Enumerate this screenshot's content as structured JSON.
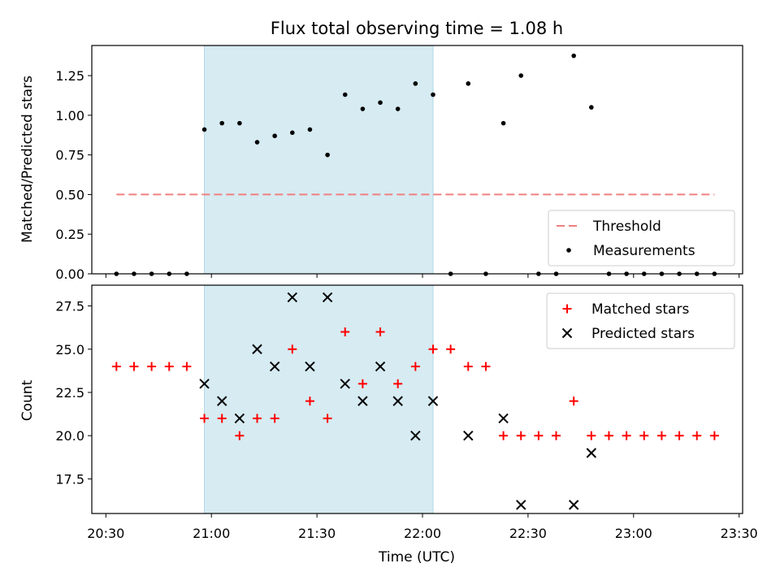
{
  "chart_data": [
    {
      "type": "scatter",
      "title": "Flux total observing time = 1.08 h",
      "ylabel": "Matched/Predicted stars",
      "xlabel": "",
      "xlim": [
        "20:26",
        "23:31"
      ],
      "ylim": [
        0,
        1.44
      ],
      "yticks": [
        "0.00",
        "0.25",
        "0.50",
        "0.75",
        "1.00",
        "1.25"
      ],
      "ytick_values": [
        0,
        0.25,
        0.5,
        0.75,
        1.0,
        1.25
      ],
      "shaded_span": [
        "20:58",
        "22:03"
      ],
      "shade_color": "#add8e6",
      "threshold": {
        "name": "Threshold",
        "y": 0.5,
        "x": [
          "20:33",
          "23:23"
        ],
        "color": "#f08080",
        "style": "dashed"
      },
      "legend": {
        "placement": "lower right",
        "entries": [
          "Threshold",
          "Measurements"
        ]
      },
      "series": [
        {
          "name": "Measurements",
          "marker": "dot",
          "color": "#000000",
          "x": [
            "20:33",
            "20:38",
            "20:43",
            "20:48",
            "20:53",
            "20:58",
            "21:03",
            "21:08",
            "21:13",
            "21:18",
            "21:23",
            "21:28",
            "21:33",
            "21:38",
            "21:43",
            "21:48",
            "21:53",
            "21:58",
            "22:03",
            "22:08",
            "22:13",
            "22:18",
            "22:23",
            "22:28",
            "22:33",
            "22:38",
            "22:43",
            "22:48",
            "22:53",
            "22:58",
            "23:03",
            "23:08",
            "23:13",
            "23:18",
            "23:23"
          ],
          "y": [
            0,
            0,
            0,
            0,
            0,
            0.91,
            0.95,
            0.95,
            0.83,
            0.87,
            0.89,
            0.91,
            0.75,
            1.13,
            1.04,
            1.08,
            1.04,
            1.2,
            1.13,
            0,
            1.2,
            0,
            0.95,
            1.25,
            0,
            0,
            1.375,
            1.05,
            0,
            0,
            0,
            0,
            0,
            0,
            0
          ]
        }
      ]
    },
    {
      "type": "scatter",
      "title": "",
      "ylabel": "Count",
      "xlabel": "Time (UTC)",
      "xlim": [
        "20:26",
        "23:31"
      ],
      "xticks": [
        "20:30",
        "21:00",
        "21:30",
        "22:00",
        "22:30",
        "23:00",
        "23:30"
      ],
      "ylim": [
        15.5,
        28.7
      ],
      "yticks": [
        "17.5",
        "20.0",
        "22.5",
        "25.0",
        "27.5"
      ],
      "ytick_values": [
        17.5,
        20.0,
        22.5,
        25.0,
        27.5
      ],
      "shaded_span": [
        "20:58",
        "22:03"
      ],
      "legend": {
        "placement": "upper right",
        "entries": [
          "Matched stars",
          "Predicted stars"
        ]
      },
      "series": [
        {
          "name": "Matched stars",
          "marker": "plus",
          "color": "#ff0000",
          "x": [
            "20:33",
            "20:38",
            "20:43",
            "20:48",
            "20:53",
            "20:58",
            "21:03",
            "21:08",
            "21:13",
            "21:18",
            "21:23",
            "21:28",
            "21:33",
            "21:38",
            "21:43",
            "21:48",
            "21:53",
            "21:58",
            "22:03",
            "22:08",
            "22:13",
            "22:18",
            "22:23",
            "22:28",
            "22:33",
            "22:38",
            "22:43",
            "22:48",
            "22:53",
            "22:58",
            "23:03",
            "23:08",
            "23:13",
            "23:18",
            "23:23"
          ],
          "y": [
            24,
            24,
            24,
            24,
            24,
            21,
            21,
            20,
            21,
            21,
            25,
            22,
            21,
            26,
            23,
            26,
            23,
            24,
            25,
            25,
            24,
            24,
            20,
            20,
            20,
            20,
            22,
            20,
            20,
            20,
            20,
            20,
            20,
            20,
            20
          ]
        },
        {
          "name": "Predicted stars",
          "marker": "x",
          "color": "#000000",
          "x": [
            "20:58",
            "21:03",
            "21:08",
            "21:13",
            "21:18",
            "21:23",
            "21:28",
            "21:33",
            "21:38",
            "21:43",
            "21:48",
            "21:53",
            "21:58",
            "22:03",
            "22:13",
            "22:23",
            "22:28",
            "22:43",
            "22:48"
          ],
          "y": [
            23,
            22,
            21,
            25,
            24,
            28,
            24,
            28,
            23,
            22,
            24,
            22,
            20,
            22,
            20,
            21,
            16,
            16,
            19
          ]
        }
      ]
    }
  ]
}
